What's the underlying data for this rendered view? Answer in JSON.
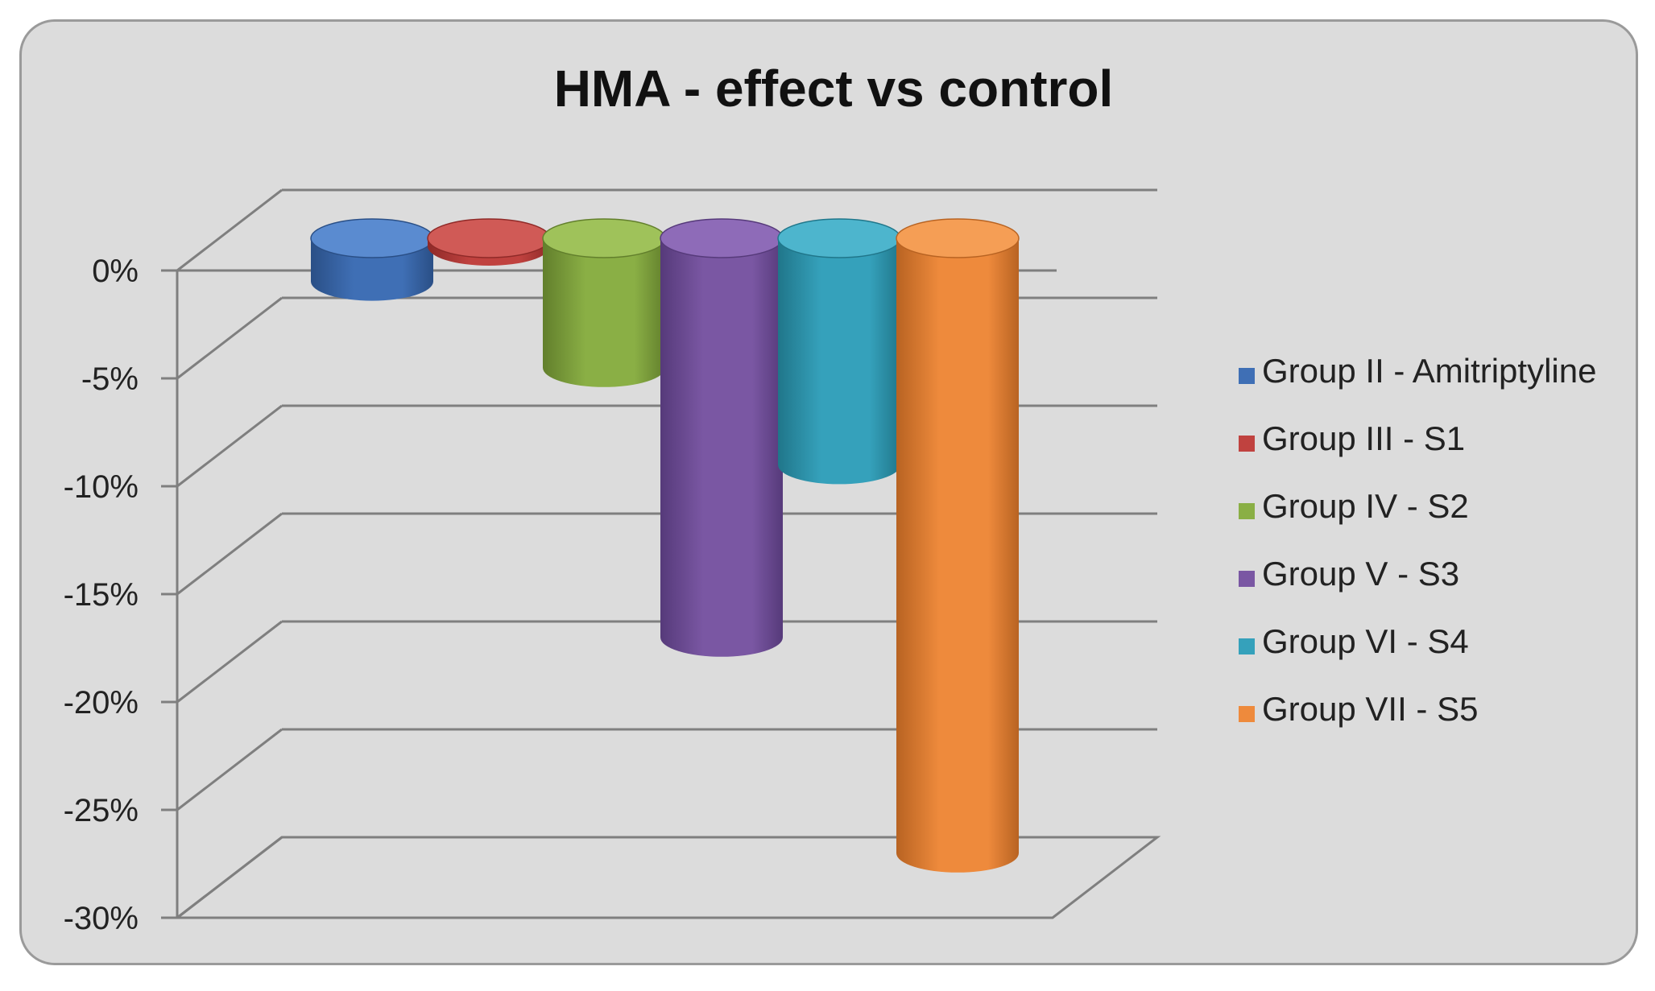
{
  "chart_data": {
    "type": "bar",
    "style": "3d-cylinder",
    "title": "HMA - effect vs control",
    "xlabel": "",
    "ylabel": "",
    "ylim": [
      -30,
      0
    ],
    "yticks": [
      0,
      -5,
      -10,
      -15,
      -20,
      -25,
      -30
    ],
    "ytick_labels": [
      "0%",
      "-5%",
      "-10%",
      "-15%",
      "-20%",
      "-25%",
      "-30%"
    ],
    "grid": true,
    "legend_position": "right",
    "series": [
      {
        "name": "Group II - Amitriptyline",
        "value": -2,
        "color": "#3f6fb5",
        "dark": "#2a4f86",
        "top": "#5a8bd0"
      },
      {
        "name": "Group III - S1",
        "value": 0,
        "color": "#c0423f",
        "dark": "#8f2a28",
        "top": "#d05a56"
      },
      {
        "name": "Group IV - S2",
        "value": -6,
        "color": "#8aaf45",
        "dark": "#627f2c",
        "top": "#9fc25a"
      },
      {
        "name": "Group V - S3",
        "value": -18.5,
        "color": "#7a57a3",
        "dark": "#563a7a",
        "top": "#8e6bb8"
      },
      {
        "name": "Group VI - S4",
        "value": -10.5,
        "color": "#35a1bb",
        "dark": "#20768a",
        "top": "#4db5cd"
      },
      {
        "name": "Group VII - S5",
        "value": -28.5,
        "color": "#ee8a3c",
        "dark": "#b86322",
        "top": "#f59e55"
      }
    ]
  }
}
